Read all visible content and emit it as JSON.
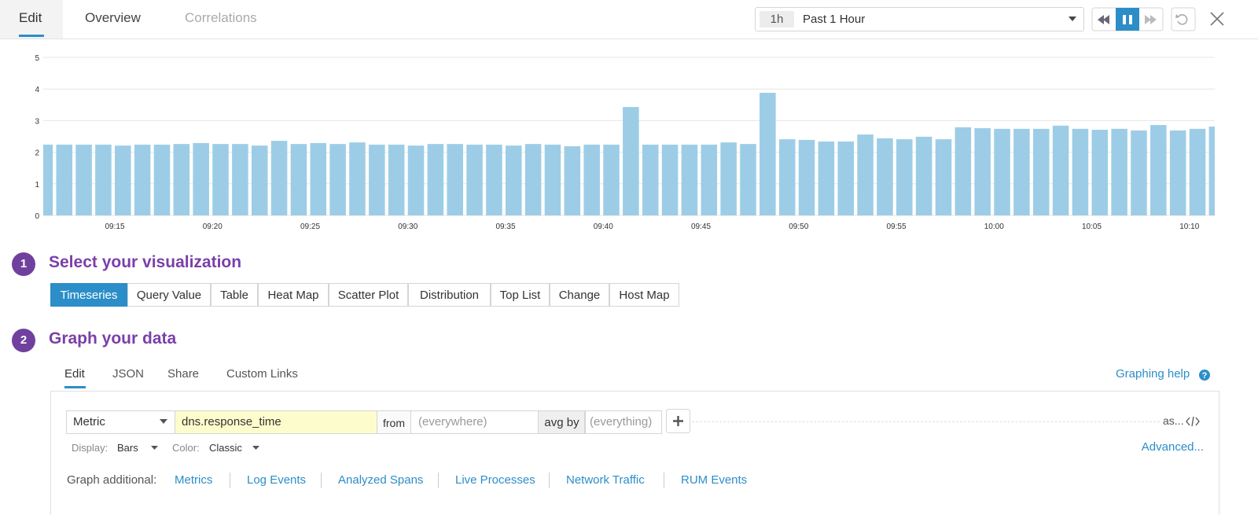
{
  "header": {
    "tabs": [
      "Edit",
      "Overview",
      "Correlations"
    ],
    "time_short": "1h",
    "time_label": "Past 1 Hour"
  },
  "chart_data": {
    "type": "bar",
    "color": "#9dcde6",
    "grid": true,
    "ylim": [
      0,
      5
    ],
    "yticks": [
      0,
      1,
      2,
      3,
      4,
      5
    ],
    "categories": [
      null,
      null,
      null,
      null,
      "09:15",
      null,
      null,
      null,
      null,
      "09:20",
      null,
      null,
      null,
      null,
      "09:25",
      null,
      null,
      null,
      null,
      "09:30",
      null,
      null,
      null,
      null,
      "09:35",
      null,
      null,
      null,
      null,
      "09:40",
      null,
      null,
      null,
      null,
      "09:45",
      null,
      null,
      null,
      null,
      "09:50",
      null,
      null,
      null,
      null,
      "09:55",
      null,
      null,
      null,
      null,
      "10:00",
      null,
      null,
      null,
      null,
      "10:05",
      null,
      null,
      null,
      null,
      "10:10",
      null
    ],
    "values": [
      2.24,
      2.24,
      2.24,
      2.24,
      2.21,
      2.24,
      2.24,
      2.26,
      2.29,
      2.26,
      2.26,
      2.21,
      2.36,
      2.26,
      2.29,
      2.26,
      2.31,
      2.24,
      2.24,
      2.21,
      2.26,
      2.26,
      2.24,
      2.24,
      2.21,
      2.26,
      2.24,
      2.19,
      2.24,
      2.24,
      3.43,
      2.24,
      2.24,
      2.24,
      2.24,
      2.31,
      2.26,
      3.88,
      2.41,
      2.39,
      2.34,
      2.34,
      2.56,
      2.44,
      2.41,
      2.49,
      2.41,
      2.79,
      2.76,
      2.74,
      2.74,
      2.74,
      2.84,
      2.74,
      2.71,
      2.74,
      2.69,
      2.86,
      2.69,
      2.74,
      2.81
    ]
  },
  "step1": {
    "number": "1",
    "title": "Select your visualization",
    "options": [
      "Timeseries",
      "Query Value",
      "Table",
      "Heat Map",
      "Scatter Plot",
      "Distribution",
      "Top List",
      "Change",
      "Host Map"
    ]
  },
  "step2": {
    "number": "2",
    "title": "Graph your data",
    "tabs": [
      "Edit",
      "JSON",
      "Share",
      "Custom Links"
    ],
    "help": "Graphing help",
    "query": {
      "source": "Metric",
      "metric": "dns.response_time",
      "from_label": "from",
      "from": "(everywhere)",
      "avg_label": "avg by",
      "avg": "(everything)",
      "as": "as..."
    },
    "display_label": "Display:",
    "display": "Bars",
    "color_label": "Color:",
    "color": "Classic",
    "advanced": "Advanced...",
    "additional_label": "Graph additional:",
    "additional": [
      "Metrics",
      "Log Events",
      "Analyzed Spans",
      "Live Processes",
      "Network Traffic",
      "RUM Events"
    ]
  }
}
